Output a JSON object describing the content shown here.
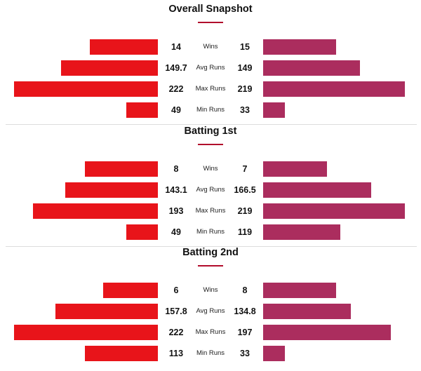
{
  "colors": {
    "team1": "#e8141a",
    "team2": "#ab2d5e",
    "accent": "#b10c2c"
  },
  "scale_max": 225,
  "sections": [
    {
      "title": "Overall Snapshot",
      "rows": [
        {
          "label": "Wins",
          "left": "14",
          "right": "15",
          "left_value": 14,
          "right_value": 15,
          "bar_scale": 15
        },
        {
          "label": "Avg Runs",
          "left": "149.7",
          "right": "149",
          "left_value": 149.7,
          "right_value": 149
        },
        {
          "label": "Max Runs",
          "left": "222",
          "right": "219",
          "left_value": 222,
          "right_value": 219
        },
        {
          "label": "Min Runs",
          "left": "49",
          "right": "33",
          "left_value": 49,
          "right_value": 33
        }
      ]
    },
    {
      "title": "Batting 1st",
      "rows": [
        {
          "label": "Wins",
          "left": "8",
          "right": "7",
          "left_value": 8,
          "right_value": 7,
          "bar_scale": 8
        },
        {
          "label": "Avg Runs",
          "left": "143.1",
          "right": "166.5",
          "left_value": 143.1,
          "right_value": 166.5
        },
        {
          "label": "Max Runs",
          "left": "193",
          "right": "219",
          "left_value": 193,
          "right_value": 219
        },
        {
          "label": "Min Runs",
          "left": "49",
          "right": "119",
          "left_value": 49,
          "right_value": 119
        }
      ]
    },
    {
      "title": "Batting 2nd",
      "rows": [
        {
          "label": "Wins",
          "left": "6",
          "right": "8",
          "left_value": 6,
          "right_value": 8,
          "bar_scale": 8
        },
        {
          "label": "Avg Runs",
          "left": "157.8",
          "right": "134.8",
          "left_value": 157.8,
          "right_value": 134.8
        },
        {
          "label": "Max Runs",
          "left": "222",
          "right": "197",
          "left_value": 222,
          "right_value": 197
        },
        {
          "label": "Min Runs",
          "left": "113",
          "right": "33",
          "left_value": 113,
          "right_value": 33
        }
      ]
    }
  ]
}
